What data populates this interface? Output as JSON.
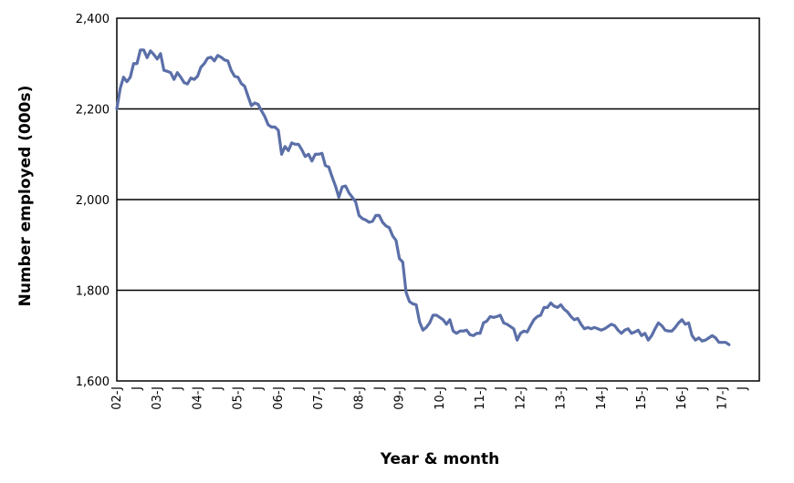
{
  "chart_data": {
    "type": "line",
    "title": "",
    "xlabel": "Year & month",
    "ylabel": "Number employed (000s)",
    "ylim": [
      1600,
      2400
    ],
    "yticks": [
      1600,
      1800,
      2000,
      2200,
      2400
    ],
    "ytick_labels": [
      "1,600",
      "1,800",
      "2,000",
      "2,200",
      "2,400"
    ],
    "grid": "horizontal",
    "x_tick_labels": [
      "02-J",
      "J",
      "03-J",
      "J",
      "04-J",
      "J",
      "05-J",
      "J",
      "06-J",
      "J",
      "07-J",
      "J",
      "08-J",
      "J",
      "09-J",
      "J",
      "10-J",
      "J",
      "11-J",
      "J",
      "12-J",
      "J",
      "13-J",
      "J",
      "14-J",
      "J",
      "15-J",
      "J",
      "16-J",
      "J",
      "17-J",
      "J"
    ],
    "x_start": "2002-01",
    "series": [
      {
        "name": "",
        "color": "#5b6fa8",
        "values": [
          2200,
          2245,
          2270,
          2260,
          2270,
          2300,
          2300,
          2330,
          2330,
          2313,
          2328,
          2320,
          2310,
          2322,
          2285,
          2283,
          2280,
          2265,
          2280,
          2270,
          2258,
          2255,
          2268,
          2265,
          2272,
          2292,
          2300,
          2312,
          2314,
          2306,
          2318,
          2314,
          2308,
          2306,
          2285,
          2272,
          2270,
          2256,
          2250,
          2228,
          2207,
          2213,
          2210,
          2196,
          2183,
          2165,
          2160,
          2160,
          2153,
          2100,
          2117,
          2108,
          2125,
          2122,
          2122,
          2110,
          2095,
          2100,
          2085,
          2100,
          2100,
          2102,
          2075,
          2072,
          2050,
          2030,
          2005,
          2028,
          2030,
          2015,
          2005,
          1995,
          1965,
          1958,
          1955,
          1950,
          1952,
          1965,
          1965,
          1950,
          1942,
          1938,
          1920,
          1910,
          1870,
          1862,
          1795,
          1775,
          1770,
          1768,
          1730,
          1712,
          1718,
          1728,
          1745,
          1745,
          1740,
          1735,
          1725,
          1735,
          1710,
          1705,
          1710,
          1710,
          1712,
          1702,
          1700,
          1705,
          1705,
          1728,
          1732,
          1742,
          1740,
          1742,
          1745,
          1728,
          1725,
          1720,
          1715,
          1690,
          1705,
          1710,
          1708,
          1722,
          1735,
          1742,
          1745,
          1762,
          1762,
          1772,
          1765,
          1762,
          1768,
          1758,
          1752,
          1742,
          1735,
          1738,
          1725,
          1715,
          1718,
          1715,
          1718,
          1715,
          1712,
          1715,
          1720,
          1725,
          1722,
          1712,
          1705,
          1712,
          1715,
          1705,
          1708,
          1712,
          1700,
          1705,
          1690,
          1700,
          1715,
          1728,
          1722,
          1712,
          1710,
          1710,
          1718,
          1728,
          1735,
          1725,
          1728,
          1700,
          1690,
          1695,
          1688,
          1690,
          1695,
          1700,
          1695,
          1685,
          1685,
          1685,
          1680
        ]
      }
    ]
  }
}
